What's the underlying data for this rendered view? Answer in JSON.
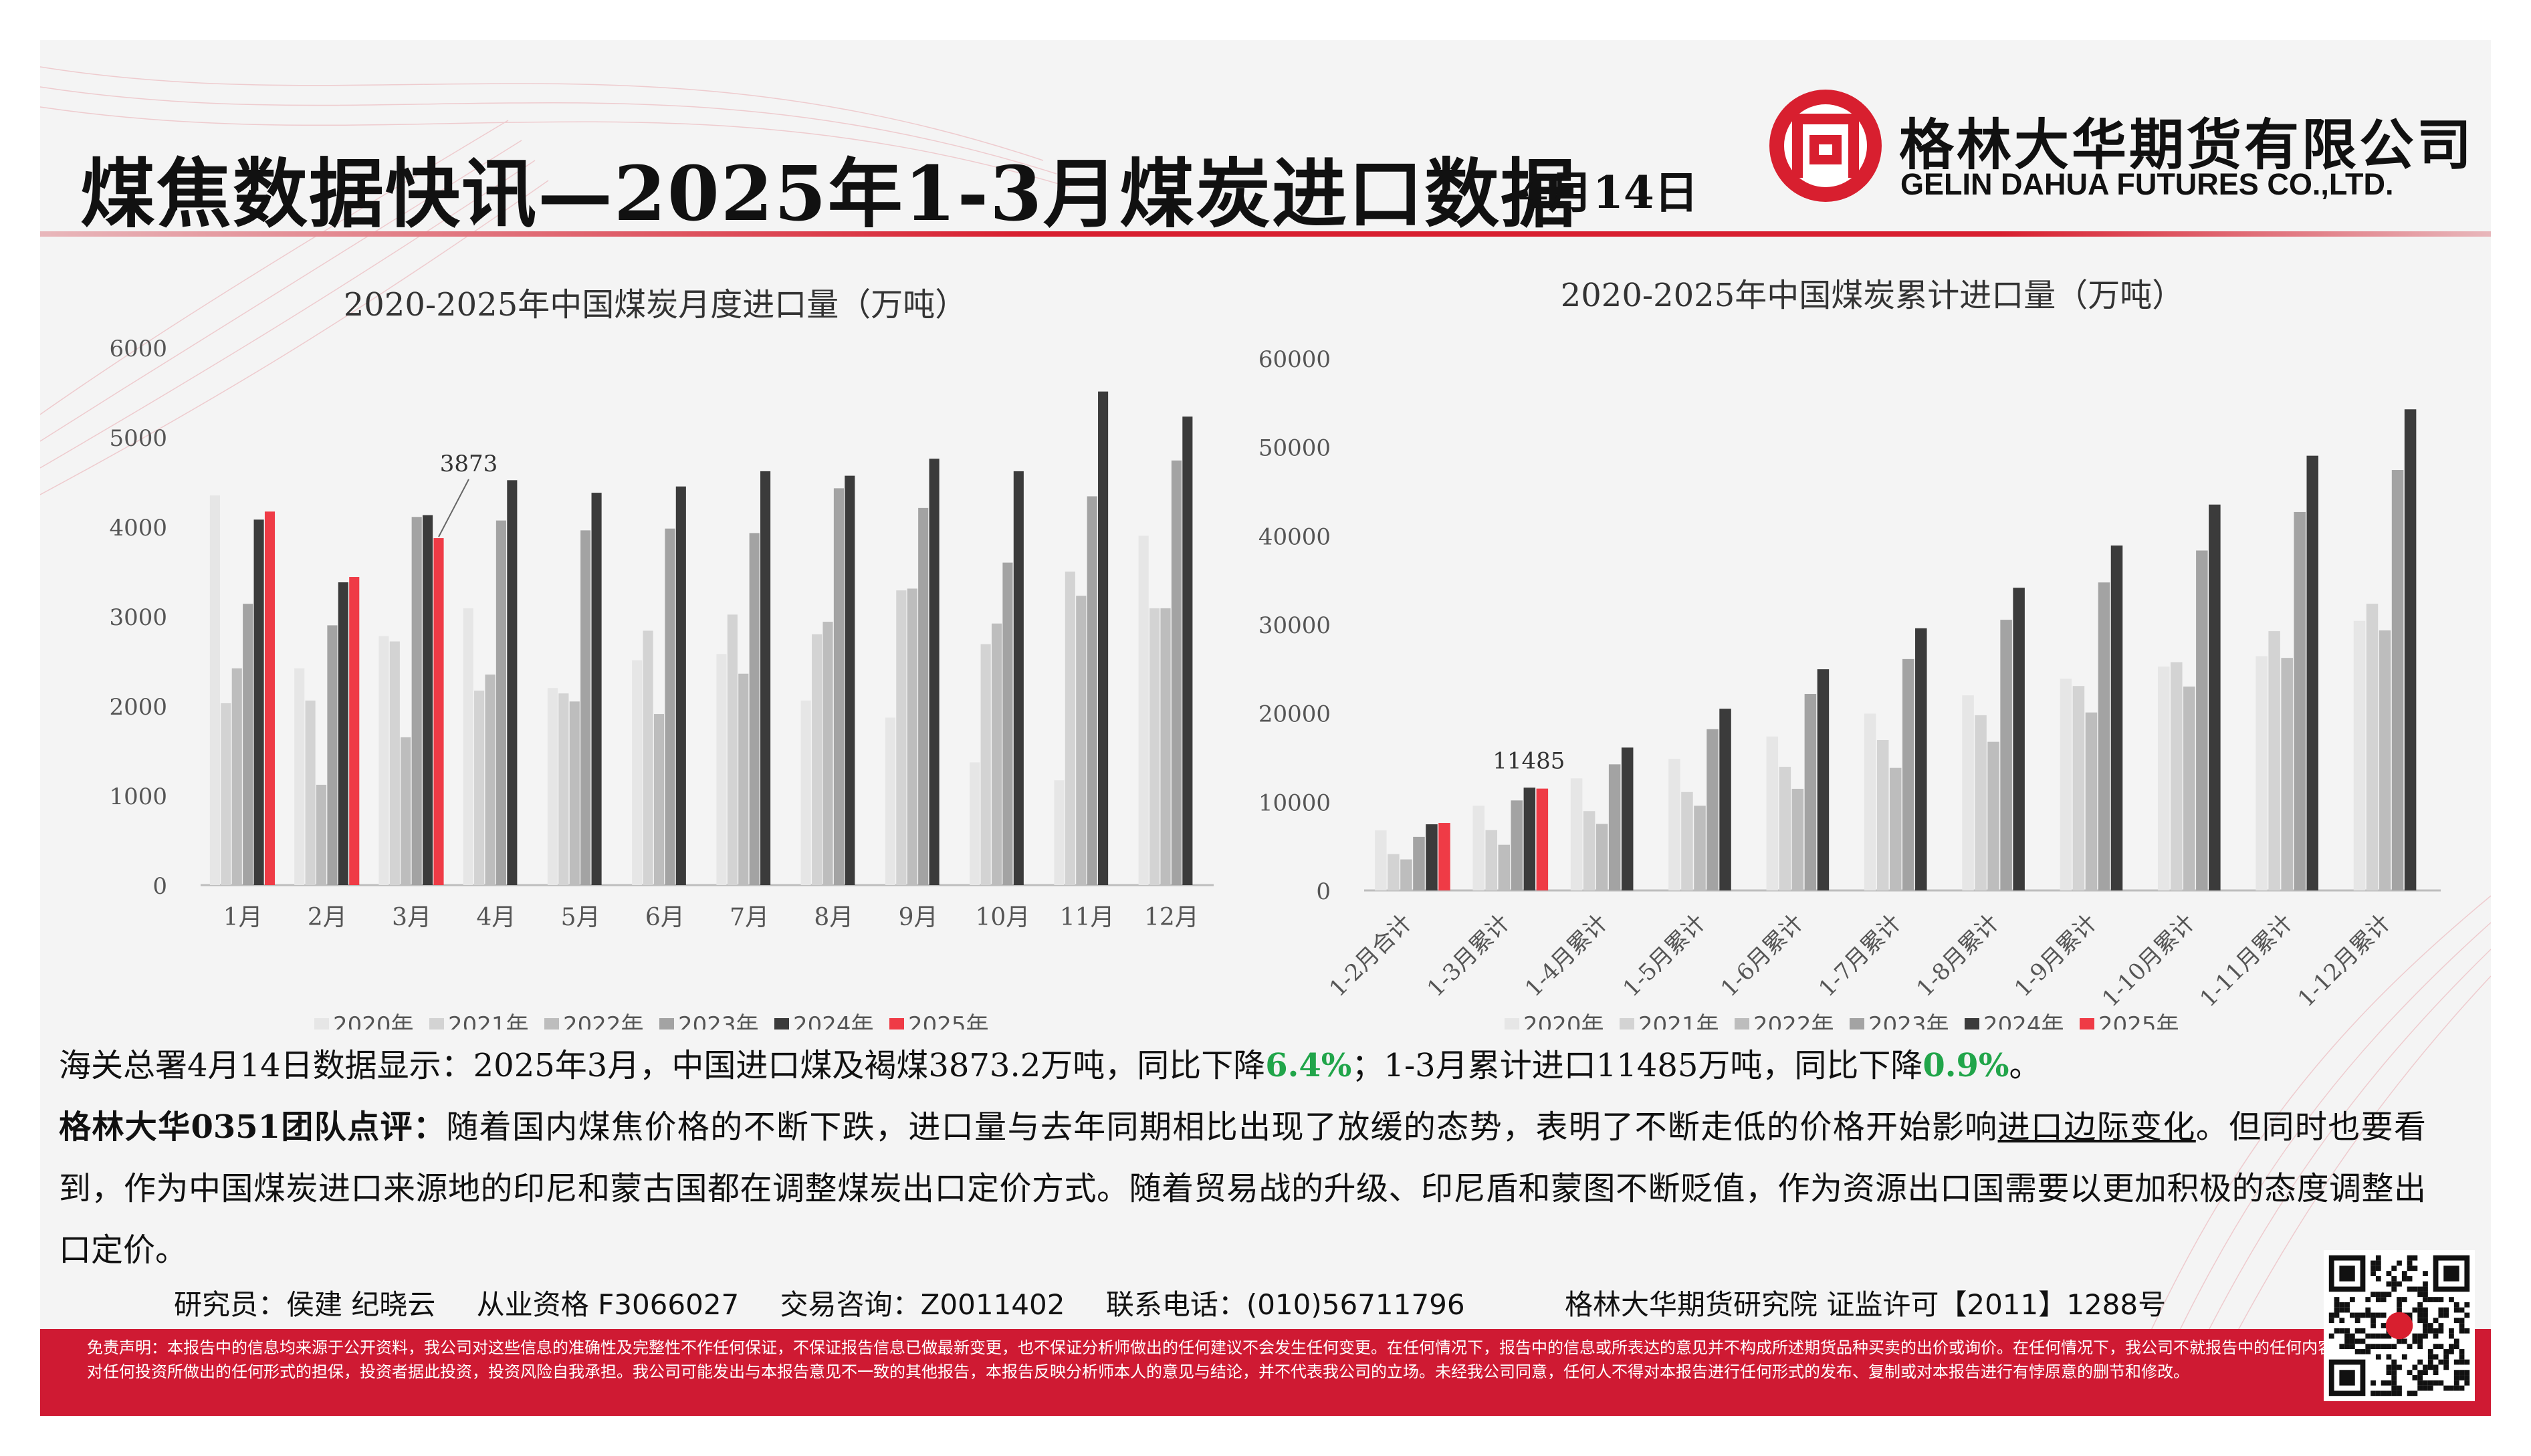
{
  "header": {
    "title": "煤焦数据快讯—2025年1-3月煤炭进口数据",
    "date": "4月14日",
    "company_cn": "格林大华期货有限公司",
    "company_en": "GELIN DAHUA FUTURES CO.,LTD."
  },
  "colors": {
    "brand_red": "#cf1a33",
    "series": [
      "#e6e6e6",
      "#d3d3d3",
      "#bdbdbd",
      "#a3a3a3",
      "#3b3b3b",
      "#ef3b46"
    ],
    "highlight_green": "#21a54a"
  },
  "chart_data": [
    {
      "type": "bar",
      "title": "2020-2025年中国煤炭月度进口量（万吨）",
      "categories": [
        "1月",
        "2月",
        "3月",
        "4月",
        "5月",
        "6月",
        "7月",
        "8月",
        "9月",
        "10月",
        "11月",
        "12月"
      ],
      "ylim": [
        0,
        6000
      ],
      "yticks": [
        "0",
        "1000",
        "2000",
        "3000",
        "4000",
        "5000",
        "6000"
      ],
      "legend_position": "bottom",
      "annotation": {
        "text": "3873",
        "series": "2025年",
        "category": "3月"
      },
      "series": [
        {
          "name": "2020年",
          "values": [
            4350,
            2420,
            2780,
            3090,
            2200,
            2510,
            2580,
            2060,
            1870,
            1370,
            1170,
            3900
          ]
        },
        {
          "name": "2021年",
          "values": [
            2030,
            2060,
            2720,
            2170,
            2140,
            2840,
            3020,
            2800,
            3290,
            2690,
            3500,
            3090
          ]
        },
        {
          "name": "2022年",
          "values": [
            2420,
            1120,
            1650,
            2350,
            2050,
            1910,
            2360,
            2940,
            3310,
            2920,
            3230,
            3090
          ]
        },
        {
          "name": "2023年",
          "values": [
            3140,
            2900,
            4110,
            4070,
            3960,
            3980,
            3930,
            4430,
            4210,
            3600,
            4340,
            4740
          ]
        },
        {
          "name": "2024年",
          "values": [
            4080,
            3380,
            4130,
            4520,
            4380,
            4450,
            4620,
            4570,
            4760,
            4620,
            5510,
            5230
          ]
        },
        {
          "name": "2025年",
          "values": [
            4170,
            3440,
            3873,
            null,
            null,
            null,
            null,
            null,
            null,
            null,
            null,
            null
          ]
        }
      ]
    },
    {
      "type": "bar",
      "title": "2020-2025年中国煤炭累计进口量（万吨）",
      "categories": [
        "1-2月合计",
        "1-3月累计",
        "1-4月累计",
        "1-5月累计",
        "1-6月累计",
        "1-7月累计",
        "1-8月累计",
        "1-9月累计",
        "1-10月累计",
        "1-11月累计",
        "1-12月累计"
      ],
      "ylim": [
        0,
        60000
      ],
      "yticks": [
        "0",
        "10000",
        "20000",
        "30000",
        "40000",
        "50000",
        "60000"
      ],
      "legend_position": "bottom",
      "annotation": {
        "text": "11485",
        "series": "2025年",
        "category": "1-3月累计"
      },
      "series": [
        {
          "name": "2020年",
          "values": [
            6770,
            9550,
            12640,
            14840,
            17360,
            19940,
            22000,
            23870,
            25240,
            26410,
            30400
          ]
        },
        {
          "name": "2021年",
          "values": [
            4100,
            6800,
            8950,
            11100,
            13940,
            16960,
            19760,
            23050,
            25740,
            29240,
            32330
          ]
        },
        {
          "name": "2022年",
          "values": [
            3500,
            5150,
            7500,
            9550,
            11460,
            13820,
            16760,
            20070,
            22990,
            26220,
            29320
          ]
        },
        {
          "name": "2023年",
          "values": [
            6040,
            10150,
            14220,
            18180,
            22160,
            26090,
            30520,
            34730,
            38330,
            42670,
            47410
          ]
        },
        {
          "name": "2024年",
          "values": [
            7460,
            11590,
            16110,
            20490,
            24940,
            29560,
            34130,
            38890,
            43510,
            49020,
            54250
          ]
        },
        {
          "name": "2025年",
          "values": [
            7610,
            11485,
            null,
            null,
            null,
            null,
            null,
            null,
            null,
            null,
            null
          ]
        }
      ]
    }
  ],
  "text": {
    "summary_a": "海关总署4月14日数据显示：2025年3月，中国进口煤及褐煤3873.2万吨，同比下降",
    "summary_b": "6.4%",
    "summary_c": "；1-3月累计进口11485万吨，同比下降",
    "summary_d": "0.9%",
    "summary_e": "。",
    "comment_lead": "格林大华0351团队点评：",
    "comment_a": "随着国内煤焦价格的不断下跌，进口量与去年同期相比出现了放缓的态势，表明了不断走低的价格开始影响",
    "comment_ul": "进口边际变化",
    "comment_b": "。但同时也要看到，作为中国煤炭进口来源地的印尼和蒙古国都在调整煤炭出口定价方式。随着贸易战的升级、印尼盾和蒙图不断贬值，作为资源出口国需要以更加积极的态度调整出口定价。"
  },
  "footer": {
    "researcher": "研究员：侯建 纪晓云",
    "license": "从业资格 F3066027",
    "consult": "交易咨询：Z0011402",
    "phone": "联系电话：(010)56711796",
    "institute": "格林大华期货研究院  证监许可【2011】1288号",
    "disclaimer": "免责声明：本报告中的信息均来源于公开资料，我公司对这些信息的准确性及完整性不作任何保证，不保证报告信息已做最新变更，也不保证分析师做出的任何建议不会发生任何变更。在任何情况下，报告中的信息或所表达的意见并不构成所述期货品种买卖的出价或询价。在任何情况下，我公司不就报告中的任何内容对任何投资所做出的任何形式的担保，投资者据此投资，投资风险自我承担。我公司可能发出与本报告意见不一致的其他报告，本报告反映分析师本人的意见与结论，并不代表我公司的立场。未经我公司同意，任何人不得对本报告进行任何形式的发布、复制或对本报告进行有悖原意的删节和修改。"
  }
}
